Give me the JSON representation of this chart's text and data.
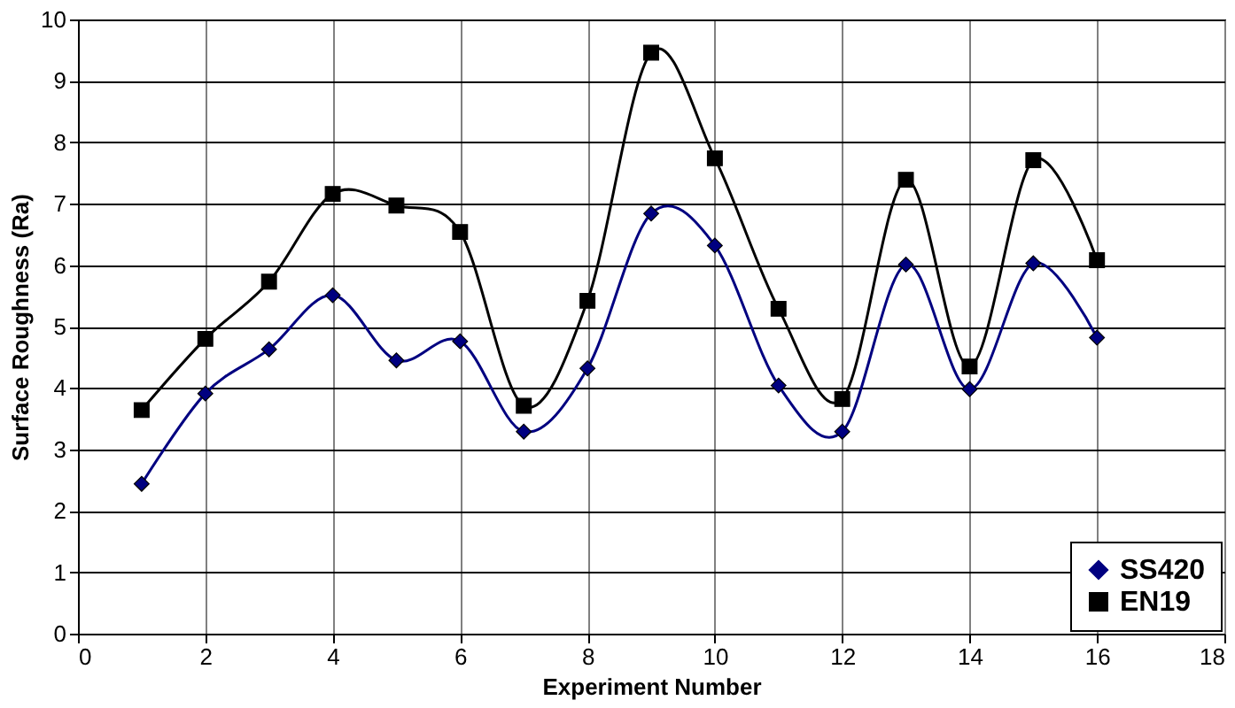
{
  "chart_data": {
    "type": "line",
    "xlabel": "Experiment Number",
    "ylabel": "Surface Roughness (Ra)",
    "x": [
      1,
      2,
      3,
      4,
      5,
      6,
      7,
      8,
      9,
      10,
      11,
      12,
      13,
      14,
      15,
      16
    ],
    "series": [
      {
        "name": "SS420",
        "color": "#000080",
        "marker": "diamond",
        "values": [
          2.44,
          3.91,
          4.63,
          5.51,
          4.45,
          4.76,
          3.29,
          4.32,
          6.84,
          6.32,
          4.04,
          3.29,
          6.01,
          3.98,
          6.03,
          4.82
        ]
      },
      {
        "name": "EN19",
        "color": "#000000",
        "marker": "square",
        "values": [
          3.64,
          4.8,
          5.73,
          7.16,
          6.97,
          6.54,
          3.71,
          5.42,
          9.46,
          7.74,
          5.29,
          3.82,
          7.39,
          4.35,
          7.71,
          6.08
        ]
      }
    ],
    "xlim": [
      0,
      18
    ],
    "xticks": [
      0,
      2,
      4,
      6,
      8,
      10,
      12,
      14,
      16,
      18
    ],
    "ylim": [
      0,
      10
    ],
    "yticks": [
      0,
      1,
      2,
      3,
      4,
      5,
      6,
      7,
      8,
      9,
      10
    ],
    "grid": true,
    "legend": "bottom right",
    "line_style": "solid"
  }
}
